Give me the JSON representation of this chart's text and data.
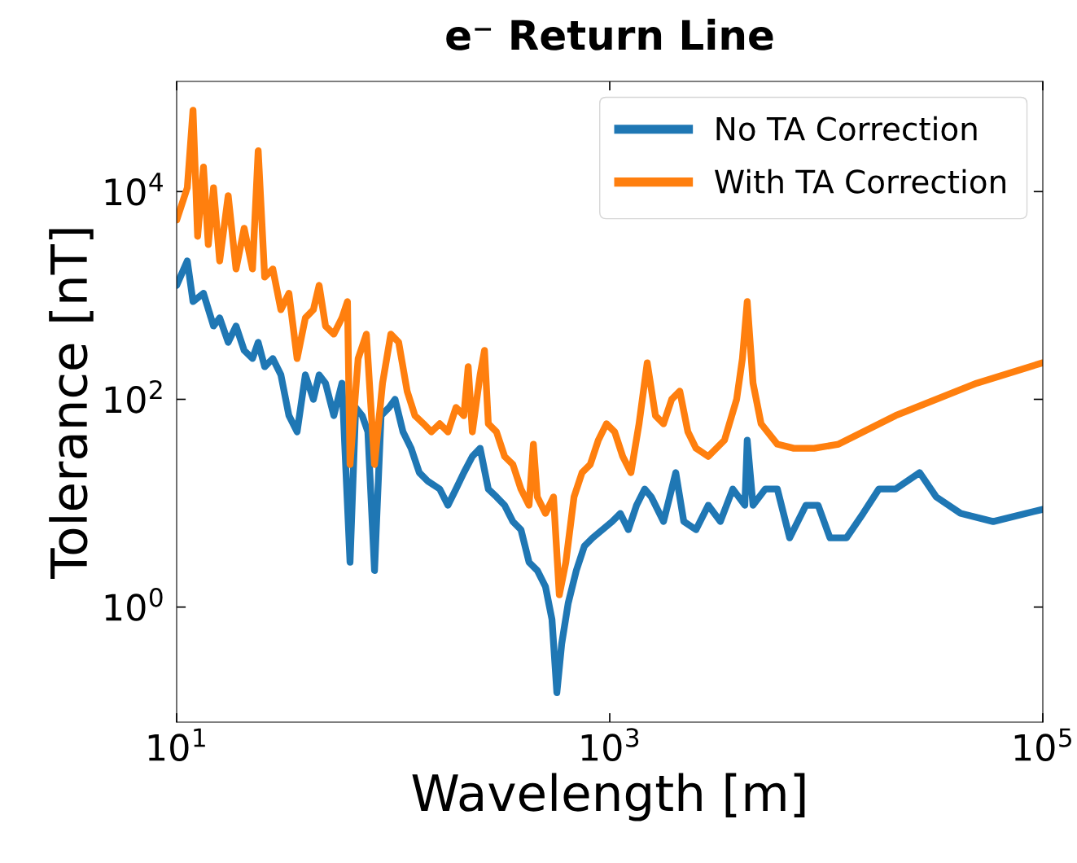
{
  "chart_data": {
    "type": "line",
    "title": "e⁻ Return Line",
    "xlabel": "Wavelength [m]",
    "ylabel": "Tolerance [nT]",
    "log": "xy",
    "xlim": [
      10,
      100000
    ],
    "ylim": [
      0.078,
      115000
    ],
    "xticks": [
      {
        "value": 10,
        "label": "10$^{1}$"
      },
      {
        "value": 1000,
        "label": "10$^{3}$"
      },
      {
        "value": 100000,
        "label": "10$^{5}$"
      }
    ],
    "yticks": [
      {
        "value": 1,
        "label": "10$^{0}$"
      },
      {
        "value": 100,
        "label": "10$^{2}$"
      },
      {
        "value": 10000,
        "label": "10$^{4}$"
      }
    ],
    "legend": "top right",
    "series": [
      {
        "name": "No TA Correction",
        "color": "#1f77b4",
        "x": [
          10,
          11.2,
          11.9,
          13.3,
          14.8,
          15.8,
          17.3,
          18.8,
          20.5,
          22.4,
          23.8,
          25.5,
          27.8,
          30.3,
          33.0,
          36.0,
          39.3,
          42.8,
          45.5,
          48.7,
          53.2,
          58.0,
          63.2,
          67.1,
          71.9,
          76.4,
          82.0,
          87.9,
          95.7,
          102,
          111,
          121,
          132,
          144,
          164,
          179,
          195,
          212,
          232,
          252,
          275,
          300,
          327,
          357,
          389,
          424,
          463,
          505,
          541,
          570,
          600,
          643,
          701,
          764,
          834,
          925,
          1026,
          1119,
          1219,
          1330,
          1451,
          1556,
          1772,
          2018,
          2198,
          2503,
          2851,
          3243,
          3700,
          4207,
          4315,
          4590,
          5224,
          5943,
          6776,
          8050,
          9170,
          10400,
          12400,
          14800,
          17500,
          20900,
          27000,
          32200,
          41700,
          59000,
          100000
        ],
        "values": [
          1250,
          2150,
          873,
          1050,
          508,
          608,
          354,
          508,
          296,
          247,
          354,
          206,
          247,
          172,
          69.7,
          48.6,
          172,
          100,
          172,
          143,
          69.7,
          143,
          2.7,
          83.5,
          69.7,
          48.6,
          2.25,
          69.7,
          83.5,
          100,
          48.6,
          33.8,
          19.7,
          16.4,
          13.7,
          9.56,
          13.7,
          19.7,
          28.2,
          33.8,
          13.7,
          11.5,
          9.56,
          6.66,
          5.56,
          2.7,
          2.25,
          1.57,
          0.762,
          0.15,
          0.443,
          1.09,
          2.25,
          3.87,
          4.64,
          5.56,
          6.66,
          7.98,
          5.56,
          9.56,
          13.7,
          11.5,
          6.66,
          19.7,
          6.66,
          5.56,
          9.56,
          6.66,
          13.7,
          9.56,
          40.5,
          9.56,
          13.7,
          13.7,
          4.64,
          9.56,
          9.56,
          4.64,
          4.64,
          7.98,
          13.7,
          13.7,
          19.7,
          11.5,
          7.98,
          6.66,
          8.73
        ]
      },
      {
        "name": "With TA Correction",
        "color": "#ff7f0e",
        "x": [
          10,
          11.2,
          11.9,
          12.5,
          13.3,
          14.0,
          14.8,
          15.8,
          17.3,
          18.8,
          20.5,
          22.4,
          23.8,
          25.5,
          27.8,
          30.3,
          33.0,
          36.0,
          39.3,
          42.8,
          45.5,
          48.7,
          53.2,
          58.0,
          61.5,
          63.2,
          68.9,
          75.2,
          82.0,
          89.3,
          97.5,
          106,
          116,
          126,
          138,
          150,
          164,
          179,
          195,
          212,
          222,
          232,
          252,
          264,
          275,
          300,
          327,
          357,
          389,
          424,
          444,
          463,
          505,
          550,
          585,
          627,
          684,
          745,
          813,
          886,
          966,
          1054,
          1148,
          1253,
          1366,
          1490,
          1626,
          1772,
          1932,
          2106,
          2296,
          2503,
          2851,
          3388,
          3855,
          4100,
          4315,
          4590,
          5000,
          5943,
          7080,
          8790,
          11400,
          20900,
          49500,
          100000
        ],
        "values": [
          5310,
          10900,
          60800,
          3710,
          17200,
          3090,
          10900,
          2150,
          9140,
          1800,
          4440,
          1800,
          24700,
          1500,
          1800,
          729,
          1050,
          247,
          608,
          729,
          1250,
          508,
          424,
          608,
          873,
          23.6,
          247,
          424,
          23.6,
          143,
          424,
          354,
          120,
          69.7,
          58.2,
          48.6,
          58.2,
          48.6,
          83.5,
          69.7,
          206,
          48.6,
          172,
          296,
          58.2,
          48.6,
          28.2,
          23.6,
          13.7,
          9.56,
          37.0,
          11.5,
          7.98,
          11.5,
          1.31,
          2.7,
          11.5,
          19.7,
          23.6,
          40.5,
          58.2,
          48.6,
          28.2,
          19.7,
          58.2,
          225,
          69.7,
          58.2,
          100,
          120,
          48.6,
          33.8,
          28.2,
          40.5,
          100,
          247,
          873,
          143,
          58.2,
          37.0,
          33.8,
          33.8,
          37.0,
          69.7,
          143,
          225
        ]
      }
    ]
  }
}
